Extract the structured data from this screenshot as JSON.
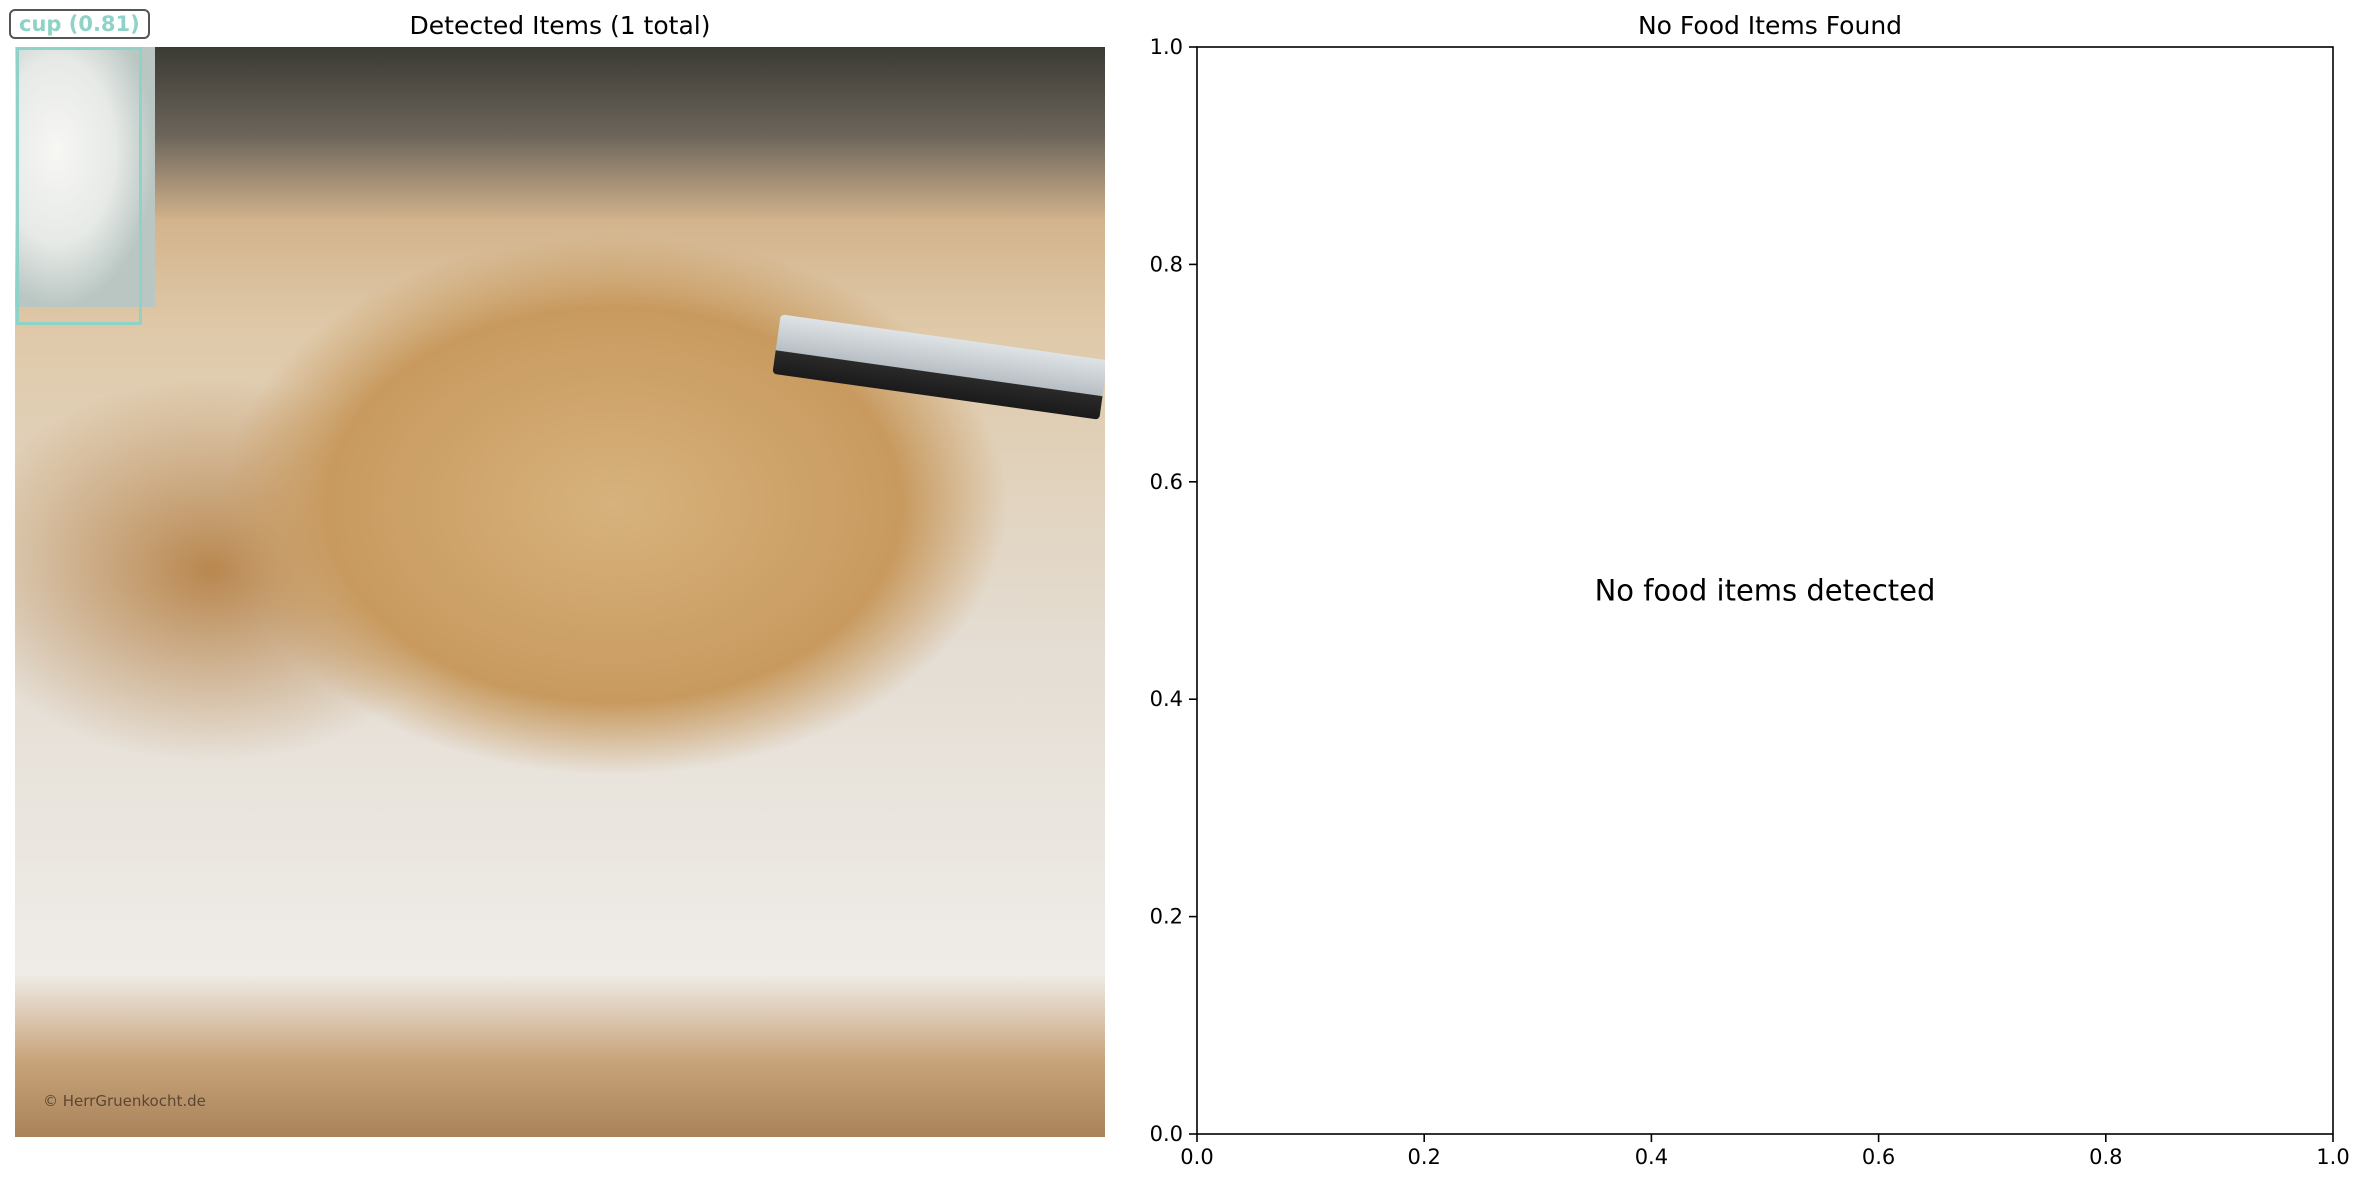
{
  "detection_panel": {
    "title": "Detected Items (1 total)",
    "watermark": "© HerrGruenkocht.de",
    "detections": [
      {
        "label": "cup (0.81)",
        "color": "#8fd3c8"
      }
    ]
  },
  "chart_data": {
    "type": "scatter",
    "title": "No Food Items Found",
    "xlabel": "",
    "ylabel": "",
    "xlim": [
      0.0,
      1.0
    ],
    "ylim": [
      0.0,
      1.0
    ],
    "x_ticks": [
      "0.0",
      "0.2",
      "0.4",
      "0.6",
      "0.8",
      "1.0"
    ],
    "y_ticks": [
      "0.0",
      "0.2",
      "0.4",
      "0.6",
      "0.8",
      "1.0"
    ],
    "grid": false,
    "series": [],
    "annotations": [
      {
        "text": "No food items detected",
        "x": 0.5,
        "y": 0.5
      }
    ]
  }
}
